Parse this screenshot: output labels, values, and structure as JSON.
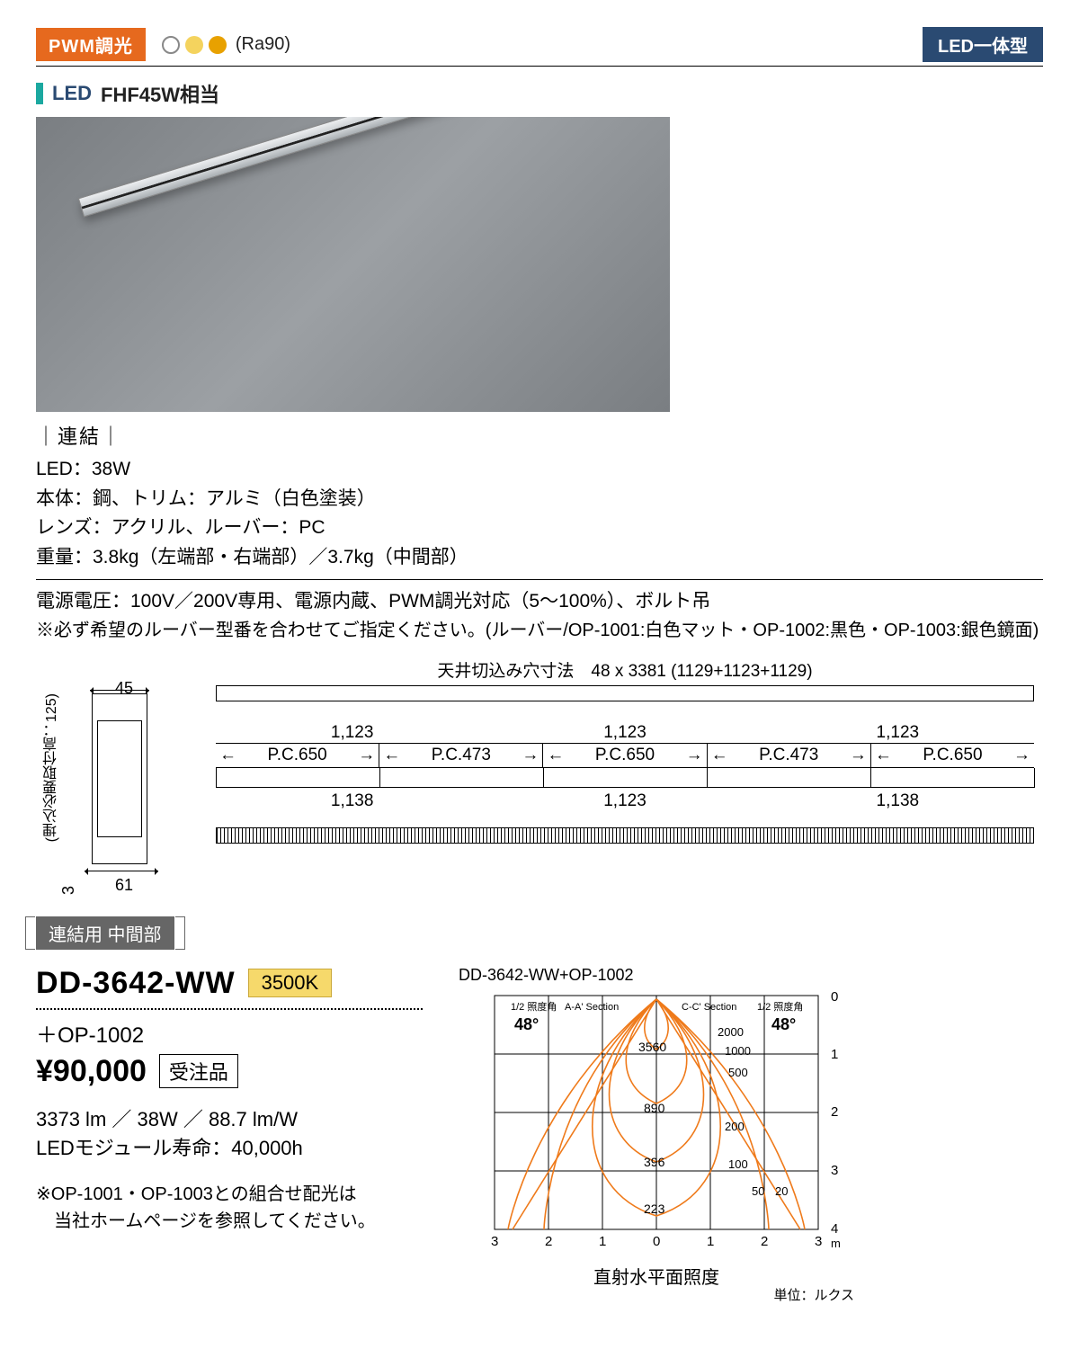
{
  "badges": {
    "pwm": "PWM調光",
    "ra": "(Ra90)",
    "led_type": "LED一体型"
  },
  "header": {
    "led": "LED",
    "equiv": "FHF45W相当"
  },
  "renketsu": "｜連結｜",
  "specs": {
    "wattage": "LED：38W",
    "body": "本体：鋼、トリム：アルミ（白色塗装）",
    "lens": "レンズ：アクリル、ルーバー：PC",
    "weight": "重量：3.8kg（左端部・右端部）／3.7kg（中間部）",
    "power": "電源電圧：100V／200V専用、電源内蔵、PWM調光対応（5～100%）、ボルト吊",
    "louver_note": "※必ず希望のルーバー型番を合わせてご指定ください。(ルーバー/OP-1001:白色マット・OP-1002:黒色・OP-1003:銀色鏡面)"
  },
  "drawing": {
    "ceiling_cut": "天井切込み穴寸法　48 x 3381 (1129+1123+1129)",
    "height": "(埋込必要取付高：125)",
    "w_top": "45",
    "w_bottom": "61",
    "three": "3",
    "seg_top": [
      "1,123",
      "1,123",
      "1,123"
    ],
    "pc": [
      "P.C.650",
      "P.C.473",
      "P.C.650",
      "P.C.473",
      "P.C.650"
    ],
    "seg_bottom": [
      "1,138",
      "1,123",
      "1,138"
    ]
  },
  "section_label": "連結用 中間部",
  "model": {
    "code": "DD-3642-WW",
    "ktemp": "3500K",
    "plus_op": "＋OP-1002",
    "price": "¥90,000",
    "order": "受注品",
    "lumen": "3373 lm ／ 38W ／ 88.7 lm/W",
    "life": "LEDモジュール寿命：40,000h",
    "combo_note": "※OP-1001・OP-1003との組合せ配光は\n　当社ホームページを参照してください。"
  },
  "photometry": {
    "title": "DD-3642-WW+OP-1002",
    "angle_label_l": "1/2 照度角",
    "section_a": "A-A' Section",
    "section_c": "C-C' Section",
    "angle_label_r": "1/2 照度角",
    "angle": "48°",
    "iso_values": [
      "3560",
      "890",
      "396",
      "223"
    ],
    "right_scale": [
      "2000",
      "1000",
      "500",
      "200",
      "100",
      "50",
      "20"
    ],
    "x_ticks": [
      "3",
      "2",
      "1",
      "0",
      "1",
      "2",
      "3"
    ],
    "y_ticks": [
      "0",
      "1",
      "2",
      "3",
      "4"
    ],
    "y_unit": "m",
    "caption": "直射水平面照度",
    "unit": "単位：ルクス",
    "colors": {
      "curve": "#ef7a1a",
      "grid": "#000000"
    }
  }
}
